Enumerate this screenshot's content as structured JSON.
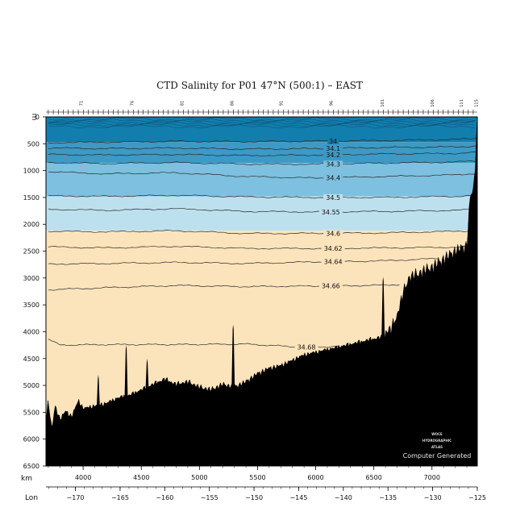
{
  "chart_data": {
    "type": "section",
    "title": "CTD Salinity for P01 47°N (500:1) – EAST",
    "y_unit_label": "m",
    "x_unit_label": "km",
    "lon_unit_label": "Lon",
    "ylim": [
      0,
      6500
    ],
    "xlim": [
      3680,
      7390
    ],
    "lonlim": [
      -173.3,
      -125
    ],
    "depth_ticks": [
      0,
      500,
      1000,
      1500,
      2000,
      2500,
      3000,
      3500,
      4000,
      4500,
      5000,
      5500,
      6000,
      6500
    ],
    "km_ticks": [
      4000,
      4500,
      5000,
      5500,
      6000,
      6500,
      7000
    ],
    "lon_ticks": [
      -170,
      -165,
      -160,
      -155,
      -150,
      -145,
      -140,
      -135,
      -130,
      -125
    ],
    "station_labels": [
      {
        "label": "71",
        "km": 3980
      },
      {
        "label": "76",
        "km": 4420
      },
      {
        "label": "81",
        "km": 4850
      },
      {
        "label": "86",
        "km": 5280
      },
      {
        "label": "91",
        "km": 5700
      },
      {
        "label": "96",
        "km": 6130
      },
      {
        "label": "101",
        "km": 6570
      },
      {
        "label": "106",
        "km": 7000
      },
      {
        "label": "111",
        "km": 7250
      },
      {
        "label": "115",
        "km": 7380
      }
    ],
    "bands": [
      {
        "upper": 34.0,
        "top": [
          0,
          0
        ],
        "bottom": [
          470,
          470
        ],
        "color": "#127eae"
      },
      {
        "upper": 34.3,
        "top": [
          470,
          470
        ],
        "bottom": [
          860,
          860
        ],
        "color": "#3d99c5"
      },
      {
        "upper": 34.5,
        "top": [
          860,
          860
        ],
        "bottom": [
          1480,
          1480
        ],
        "color": "#7dc0df"
      },
      {
        "upper": 34.6,
        "top": [
          1480,
          1480
        ],
        "bottom": [
          2120,
          2120
        ],
        "color": "#bde0ee"
      },
      {
        "upper": 34.7,
        "top": [
          2120,
          2120
        ],
        "bottom": [
          6500,
          6500
        ],
        "color": "#fbe3bb"
      }
    ],
    "contours": [
      {
        "label": "34",
        "km": [
          3700,
          4200,
          4800,
          5400,
          6000,
          6600,
          7200,
          7390
        ],
        "depth": [
          480,
          470,
          455,
          460,
          450,
          440,
          420,
          400
        ],
        "label_km": 6150
      },
      {
        "label": "34.1",
        "km": [
          3700,
          4200,
          4800,
          5400,
          6000,
          6600,
          7200,
          7390
        ],
        "depth": [
          580,
          590,
          580,
          600,
          590,
          570,
          560,
          540
        ],
        "label_km": 6150
      },
      {
        "label": "34.2",
        "km": [
          3700,
          4200,
          4800,
          5400,
          6000,
          6600,
          7200,
          7390
        ],
        "depth": [
          700,
          710,
          700,
          720,
          710,
          690,
          680,
          660
        ],
        "label_km": 6150
      },
      {
        "label": "34.3",
        "km": [
          3700,
          4200,
          4800,
          5400,
          6000,
          6600,
          7200,
          7390
        ],
        "depth": [
          850,
          870,
          850,
          880,
          880,
          860,
          840,
          820
        ],
        "label_km": 6150
      },
      {
        "label": "34.4",
        "km": [
          3700,
          4200,
          4800,
          5400,
          6000,
          6600,
          7200,
          7390
        ],
        "depth": [
          1020,
          1060,
          1040,
          1110,
          1140,
          1110,
          1080,
          1050
        ],
        "label_km": 6150
      },
      {
        "label": "34.5",
        "km": [
          3700,
          4200,
          4800,
          5400,
          6000,
          6600,
          7200,
          7390
        ],
        "depth": [
          1470,
          1480,
          1460,
          1490,
          1500,
          1500,
          1480,
          1460
        ],
        "label_km": 6150
      },
      {
        "label": "34.55",
        "km": [
          3700,
          4200,
          4800,
          5400,
          6000,
          6600,
          7200,
          7390
        ],
        "depth": [
          1720,
          1740,
          1710,
          1760,
          1770,
          1760,
          1740,
          1720
        ],
        "label_km": 6130
      },
      {
        "label": "34.6",
        "km": [
          3700,
          4200,
          4800,
          5400,
          6000,
          6600,
          7200,
          7350
        ],
        "depth": [
          2130,
          2140,
          2120,
          2170,
          2170,
          2160,
          2130,
          2120
        ],
        "label_km": 6150
      },
      {
        "label": "34.62",
        "km": [
          3700,
          4200,
          4800,
          5400,
          6000,
          6600,
          7100,
          7300
        ],
        "depth": [
          2420,
          2440,
          2410,
          2450,
          2450,
          2440,
          2430,
          2420
        ],
        "label_km": 6150
      },
      {
        "label": "34.64",
        "km": [
          3700,
          4200,
          4800,
          5400,
          6000,
          6600,
          6900,
          7050
        ],
        "depth": [
          2740,
          2730,
          2710,
          2730,
          2700,
          2680,
          2650,
          2640
        ],
        "label_km": 6150
      },
      {
        "label": "34.66",
        "km": [
          3700,
          4200,
          4800,
          5400,
          6000,
          6400,
          6650,
          6720
        ],
        "depth": [
          3220,
          3180,
          3140,
          3160,
          3150,
          3140,
          3130,
          3120
        ],
        "label_km": 6130
      },
      {
        "label": "34.68",
        "km": [
          3700,
          3800,
          4200,
          4800,
          5400,
          5900,
          6100,
          6200
        ],
        "depth": [
          4140,
          4250,
          4240,
          4240,
          4230,
          4290,
          4280,
          4270
        ],
        "label_km": 5920
      }
    ],
    "bathymetry": {
      "km": [
        3680,
        3700,
        3730,
        3760,
        3800,
        3850,
        3900,
        3960,
        4000,
        4100,
        4200,
        4300,
        4400,
        4500,
        4600,
        4700,
        4800,
        4900,
        5000,
        5100,
        5200,
        5300,
        5400,
        5500,
        5600,
        5700,
        5800,
        5900,
        6000,
        6100,
        6200,
        6300,
        6400,
        6500,
        6600,
        6650,
        6700,
        6750,
        6800,
        6900,
        7000,
        7100,
        7200,
        7250,
        7300,
        7330,
        7350,
        7370,
        7390
      ],
      "depth": [
        5700,
        5350,
        5900,
        5450,
        5700,
        5550,
        5650,
        5350,
        5500,
        5450,
        5400,
        5300,
        5250,
        5150,
        5050,
        4950,
        5050,
        5000,
        5100,
        5150,
        5050,
        5100,
        5000,
        4850,
        4750,
        4700,
        4600,
        4500,
        4450,
        4400,
        4350,
        4300,
        4250,
        4200,
        4150,
        4100,
        3850,
        3450,
        3150,
        3050,
        2950,
        2800,
        2650,
        2600,
        2550,
        1600,
        1500,
        1100,
        0
      ]
    },
    "seamounts": [
      {
        "km": 4370,
        "depth": 4250
      },
      {
        "km": 4550,
        "depth": 4500
      },
      {
        "km": 4130,
        "depth": 4800
      },
      {
        "km": 5290,
        "depth": 3870
      },
      {
        "km": 6580,
        "depth": 2980
      }
    ]
  },
  "credit": "Computer Generated",
  "logo": {
    "line1": "WOCE",
    "line2": "HYDROGRAPHIC",
    "line3": "ATLAS"
  }
}
